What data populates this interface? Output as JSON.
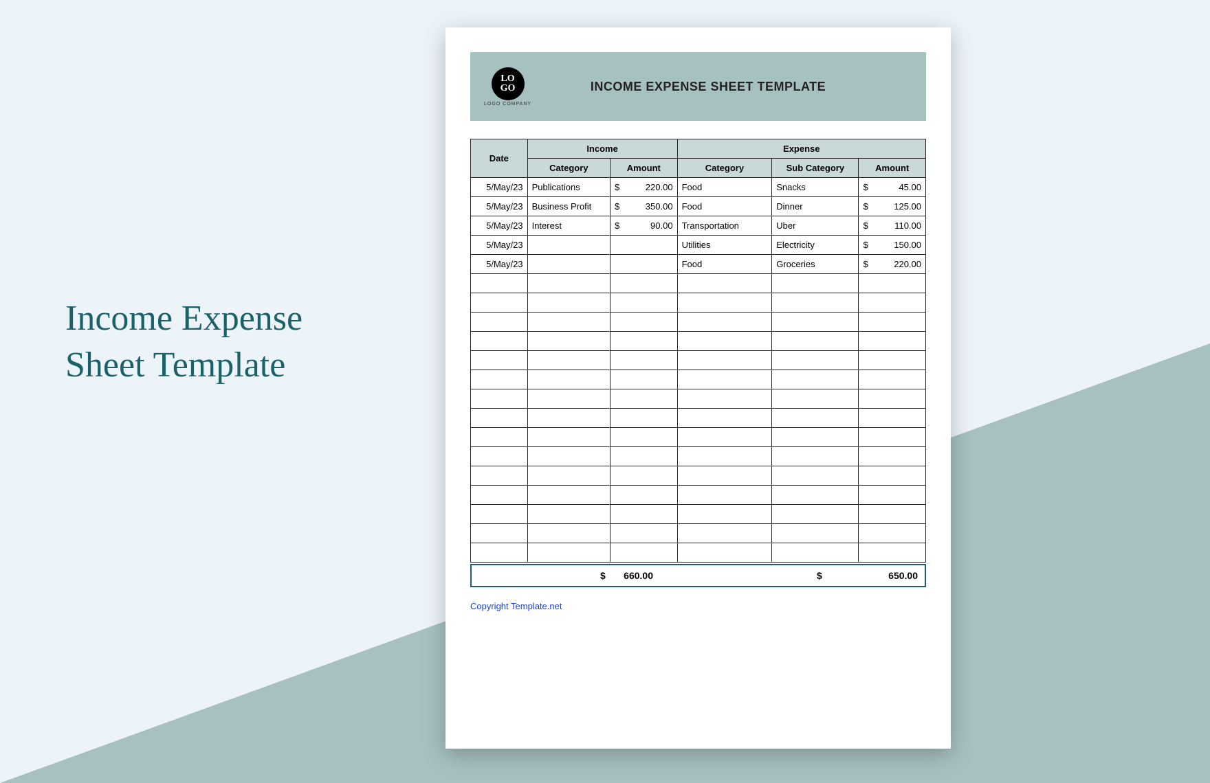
{
  "page": {
    "left_title_line1": "Income Expense",
    "left_title_line2": "Sheet Template",
    "colors": {
      "background": "#ecf4fa",
      "triangle": "#a7c0c0",
      "title_text": "#1a6268",
      "banner_bg": "#a7c0c0",
      "header_bg": "#c9d9d7",
      "border": "#222222",
      "totals_border": "#1a6268",
      "link": "#1a3fd4"
    }
  },
  "sheet": {
    "logo_text": "LO\nGO",
    "logo_subtext": "LOGO COMPANY",
    "banner_title": "INCOME EXPENSE SHEET TEMPLATE",
    "headers": {
      "date": "Date",
      "income": "Income",
      "expense": "Expense",
      "income_category": "Category",
      "income_amount": "Amount",
      "expense_category": "Category",
      "expense_subcategory": "Sub Category",
      "expense_amount": "Amount"
    },
    "rows": [
      {
        "date": "5/May/23",
        "icat": "Publications",
        "iamt": "220.00",
        "ecat": "Food",
        "esub": "Snacks",
        "eamt": "45.00"
      },
      {
        "date": "5/May/23",
        "icat": "Business Profit",
        "iamt": "350.00",
        "ecat": "Food",
        "esub": "Dinner",
        "eamt": "125.00"
      },
      {
        "date": "5/May/23",
        "icat": "Interest",
        "iamt": "90.00",
        "ecat": "Transportation",
        "esub": "Uber",
        "eamt": "110.00"
      },
      {
        "date": "5/May/23",
        "icat": "",
        "iamt": "",
        "ecat": "Utilities",
        "esub": "Electricity",
        "eamt": "150.00"
      },
      {
        "date": "5/May/23",
        "icat": "",
        "iamt": "",
        "ecat": "Food",
        "esub": "Groceries",
        "eamt": "220.00"
      }
    ],
    "empty_rows": 15,
    "currency_symbol": "$",
    "totals": {
      "income": "660.00",
      "expense": "650.00"
    },
    "copyright": "Copyright Template.net"
  }
}
